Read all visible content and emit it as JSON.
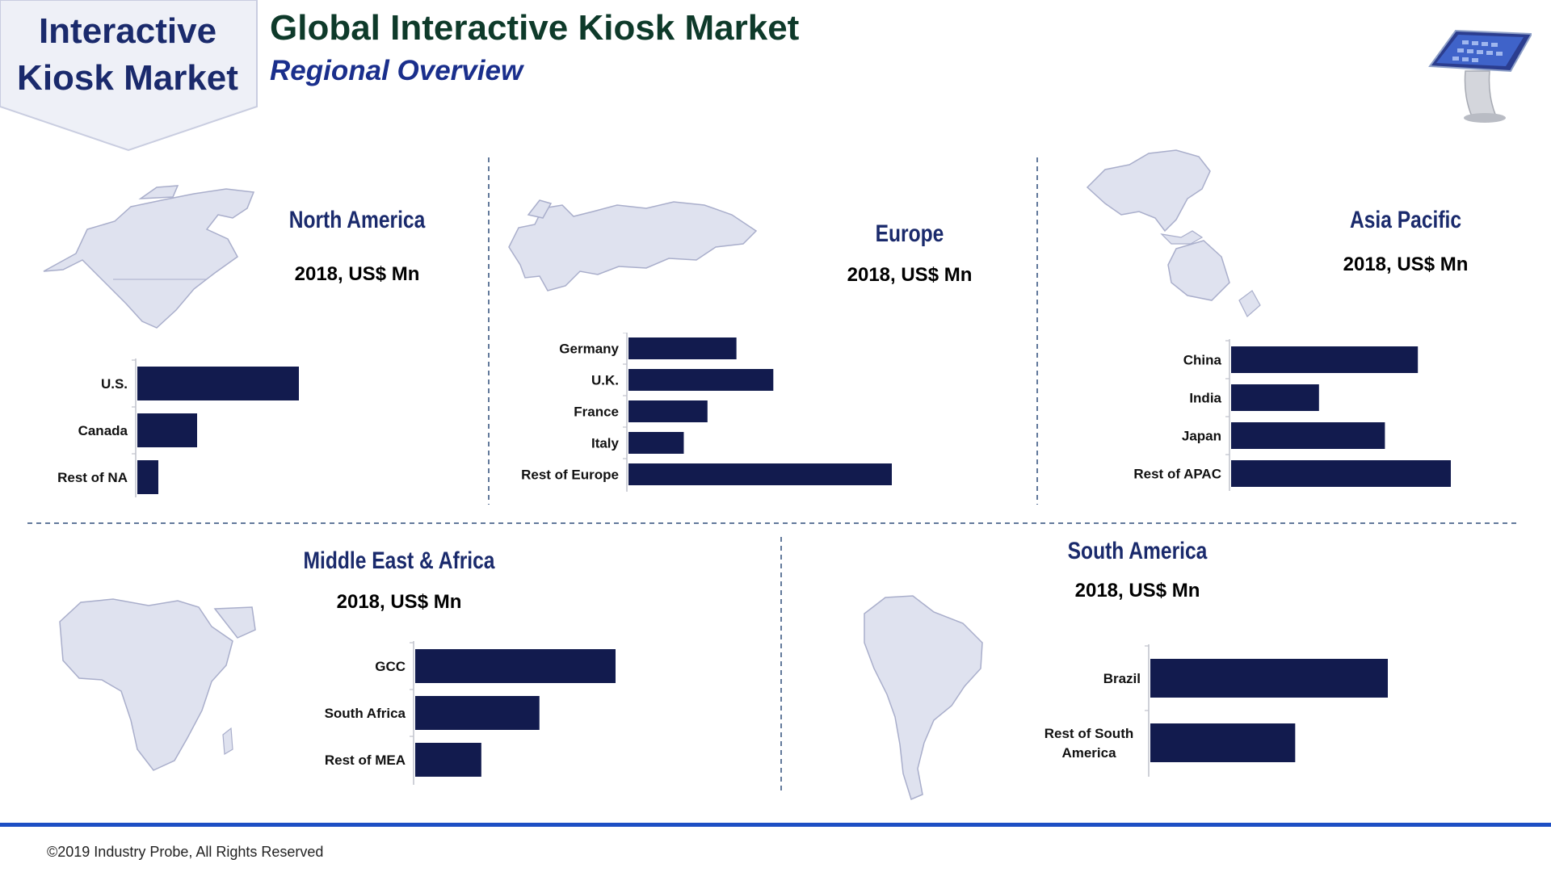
{
  "header": {
    "badge_line1": "Interactive",
    "badge_line2": "Kiosk Market",
    "title": "Global Interactive Kiosk Market",
    "subtitle": "Regional Overview"
  },
  "colors": {
    "bar": "#121b4e",
    "map_fill": "#dfe2ef",
    "map_stroke": "#a9aecb",
    "divider": "#2f4d7a",
    "footer_line": "#1d4fc4"
  },
  "footer": {
    "copyright": "©2019 Industry Probe, All Rights Reserved"
  },
  "chart_data": [
    {
      "type": "bar",
      "orientation": "horizontal",
      "title": "North America",
      "unit_label": "2018, US$ Mn",
      "categories": [
        "U.S.",
        "Canada",
        "Rest of NA"
      ],
      "values": [
        100,
        37,
        13
      ],
      "icon": "north-america-map-icon"
    },
    {
      "type": "bar",
      "orientation": "horizontal",
      "title": "Europe",
      "unit_label": "2018, US$ Mn",
      "categories": [
        "Germany",
        "U.K.",
        "France",
        "Italy",
        "Rest of Europe"
      ],
      "values": [
        41,
        55,
        30,
        21,
        100
      ],
      "icon": "europe-map-icon"
    },
    {
      "type": "bar",
      "orientation": "horizontal",
      "title": "Asia Pacific",
      "unit_label": "2018, US$ Mn",
      "categories": [
        "China",
        "India",
        "Japan",
        "Rest of APAC"
      ],
      "values": [
        85,
        40,
        70,
        100
      ],
      "icon": "asia-pacific-map-icon"
    },
    {
      "type": "bar",
      "orientation": "horizontal",
      "title": "Middle East & Africa",
      "unit_label": "2018, US$ Mn",
      "categories": [
        "GCC",
        "South Africa",
        "Rest of MEA"
      ],
      "values": [
        100,
        62,
        33
      ],
      "icon": "africa-map-icon"
    },
    {
      "type": "bar",
      "orientation": "horizontal",
      "title": "South America",
      "unit_label": "2018, US$ Mn",
      "categories": [
        "Brazil",
        "Rest of South America"
      ],
      "category_lines": [
        [
          "Brazil"
        ],
        [
          "Rest of South",
          "America"
        ]
      ],
      "values": [
        100,
        61
      ],
      "icon": "south-america-map-icon"
    }
  ]
}
